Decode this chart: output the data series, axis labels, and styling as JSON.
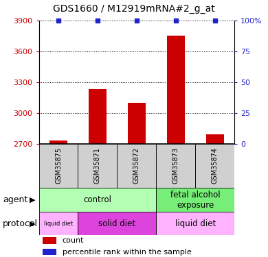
{
  "title": "GDS1660 / M12919mRNA#2_g_at",
  "samples": [
    "GSM35875",
    "GSM35871",
    "GSM35872",
    "GSM35873",
    "GSM35874"
  ],
  "counts": [
    2730,
    3230,
    3100,
    3750,
    2790
  ],
  "percentiles": [
    100,
    100,
    100,
    100,
    100
  ],
  "ylim_left": [
    2700,
    3900
  ],
  "ylim_right": [
    0,
    100
  ],
  "yticks_left": [
    2700,
    3000,
    3300,
    3600,
    3900
  ],
  "yticks_right": [
    0,
    25,
    50,
    75,
    100
  ],
  "bar_color": "#cc0000",
  "dot_color": "#2222cc",
  "bar_bottom": 2700,
  "agent_groups": [
    {
      "label": "control",
      "cols": [
        0,
        1,
        2
      ],
      "color": "#b3ffb3"
    },
    {
      "label": "fetal alcohol\nexposure",
      "cols": [
        3,
        4
      ],
      "color": "#77ee77"
    }
  ],
  "protocol_groups": [
    {
      "label": "liquid diet",
      "cols": [
        0
      ],
      "color": "#ffb3ff"
    },
    {
      "label": "solid diet",
      "cols": [
        1,
        2
      ],
      "color": "#dd44dd"
    },
    {
      "label": "liquid diet",
      "cols": [
        3,
        4
      ],
      "color": "#ffb3ff"
    }
  ],
  "legend_count_color": "#cc0000",
  "legend_pct_color": "#2222cc",
  "sample_box_color": "#d0d0d0",
  "left_axis_color": "#cc0000",
  "right_axis_color": "#2222cc",
  "title_fontsize": 10
}
